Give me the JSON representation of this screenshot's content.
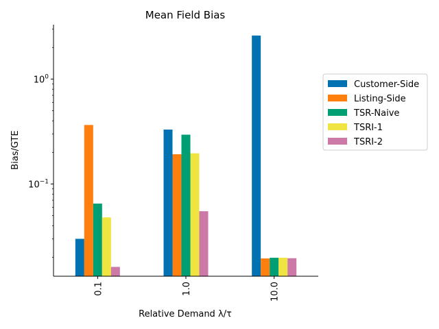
{
  "chart_data": {
    "type": "bar",
    "title": "Mean Field Bias",
    "xlabel": "Relative Demand λ/τ",
    "ylabel": "Bias/GTE",
    "yscale": "log",
    "ylim": [
      0.0132,
      3.3
    ],
    "yticks": [
      {
        "value": 0.1,
        "base": "10",
        "exp": "−1"
      },
      {
        "value": 1,
        "base": "10",
        "exp": "0"
      }
    ],
    "categories": [
      "0.1",
      "1.0",
      "10.0"
    ],
    "legend_position": "right",
    "series": [
      {
        "name": "Customer-Side",
        "color": "#0072b2",
        "values": [
          0.03,
          0.33,
          2.6
        ]
      },
      {
        "name": "Listing-Side",
        "color": "#ff7f0e",
        "values": [
          0.365,
          0.192,
          0.0195
        ]
      },
      {
        "name": "TSR-Naive",
        "color": "#009e73",
        "values": [
          0.065,
          0.295,
          0.0198
        ]
      },
      {
        "name": "TSRI-1",
        "color": "#f0e442",
        "values": [
          0.048,
          0.196,
          0.0198
        ]
      },
      {
        "name": "TSRI-2",
        "color": "#cc79a7",
        "values": [
          0.0162,
          0.055,
          0.0196
        ]
      }
    ]
  }
}
